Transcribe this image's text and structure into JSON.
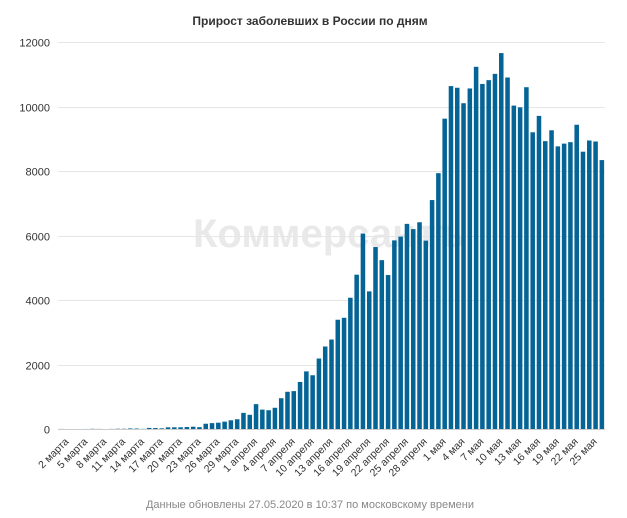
{
  "chart_data": {
    "type": "bar",
    "title": "Прирост заболевших в России по дням",
    "footer": "Данные обновлены 27.05.2020 в 10:37 по московскому времени",
    "watermark": "Коммерсантъ",
    "color": "#046496",
    "ylim": [
      0,
      12000
    ],
    "yticks": [
      0,
      2000,
      4000,
      6000,
      8000,
      10000,
      12000
    ],
    "grid": true,
    "categories": [
      "2 марта",
      "3 марта",
      "4 марта",
      "5 марта",
      "6 марта",
      "7 марта",
      "8 марта",
      "9 марта",
      "10 марта",
      "11 марта",
      "12 марта",
      "13 марта",
      "14 марта",
      "15 марта",
      "16 марта",
      "17 марта",
      "18 марта",
      "19 марта",
      "20 марта",
      "21 марта",
      "22 марта",
      "23 марта",
      "24 марта",
      "25 марта",
      "26 марта",
      "27 марта",
      "28 марта",
      "29 марта",
      "30 марта",
      "31 марта",
      "1 апреля",
      "2 апреля",
      "3 апреля",
      "4 апреля",
      "5 апреля",
      "6 апреля",
      "7 апреля",
      "8 апреля",
      "9 апреля",
      "10 апреля",
      "11 апреля",
      "12 апреля",
      "13 апреля",
      "14 апреля",
      "15 апреля",
      "16 апреля",
      "17 апреля",
      "18 апреля",
      "19 апреля",
      "20 апреля",
      "21 апреля",
      "22 апреля",
      "23 апреля",
      "24 апреля",
      "25 апреля",
      "26 апреля",
      "27 апреля",
      "28 апреля",
      "29 апреля",
      "30 апреля",
      "1 мая",
      "2 мая",
      "3 мая",
      "4 мая",
      "5 мая",
      "6 мая",
      "7 мая",
      "8 мая",
      "9 мая",
      "10 мая",
      "11 мая",
      "12 мая",
      "13 мая",
      "14 мая",
      "15 мая",
      "16 мая",
      "17 мая",
      "18 мая",
      "19 мая",
      "20 мая",
      "21 мая",
      "22 мая",
      "23 мая",
      "24 мая",
      "25 мая",
      "26 мая",
      "27 мая"
    ],
    "values": [
      2,
      0,
      0,
      0,
      1,
      6,
      3,
      0,
      3,
      8,
      8,
      17,
      14,
      4,
      34,
      30,
      21,
      52,
      52,
      53,
      61,
      71,
      57,
      163,
      182,
      196,
      228,
      270,
      302,
      500,
      440,
      771,
      601,
      582,
      658,
      954,
      1154,
      1175,
      1459,
      1786,
      1667,
      2186,
      2558,
      2774,
      3388,
      3448,
      4070,
      4785,
      6060,
      4268,
      5642,
      5236,
      4774,
      5849,
      5966,
      6361,
      6198,
      6411,
      5841,
      7099,
      7933,
      9623,
      10633,
      10581,
      10102,
      10559,
      11231,
      10699,
      10817,
      11012,
      11656,
      10899,
      10028,
      9974,
      10598,
      9200,
      9709,
      8926,
      9263,
      8764,
      8849,
      8894,
      9434,
      8599,
      8946,
      8915,
      8338
    ],
    "xtick_labels": [
      "2 марта",
      "5 марта",
      "8 марта",
      "11 марта",
      "14 марта",
      "17 марта",
      "20 марта",
      "23 марта",
      "26 марта",
      "29 марта",
      "1 апреля",
      "4 апреля",
      "7 апреля",
      "10 апреля",
      "13 апреля",
      "16 апреля",
      "19 апреля",
      "22 апреля",
      "25 апреля",
      "28 апреля",
      "1 мая",
      "4 мая",
      "7 мая",
      "10 мая",
      "13 мая",
      "16 мая",
      "19 мая",
      "22 мая",
      "25 мая"
    ]
  }
}
